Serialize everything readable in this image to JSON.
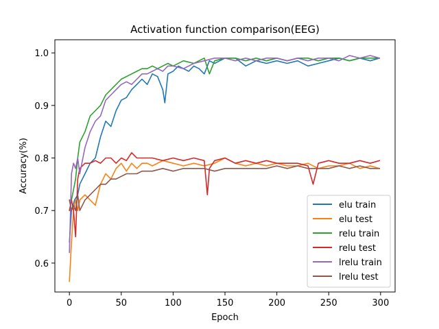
{
  "chart_data": {
    "type": "line",
    "title": "Activation function comparison(EEG)",
    "xlabel": "Epoch",
    "ylabel": "Accuracy(%)",
    "xlim": [
      -14,
      314
    ],
    "ylim": [
      0.545,
      1.025
    ],
    "xticks": [
      0,
      50,
      100,
      150,
      200,
      250,
      300
    ],
    "yticks": [
      0.6,
      0.7,
      0.8,
      0.9,
      1.0
    ],
    "ytick_labels": [
      "0.6",
      "0.7",
      "0.8",
      "0.9",
      "1.0"
    ],
    "grid": false,
    "legend_position": "lower-right",
    "series": [
      {
        "name": "elu train",
        "color": "#1f77b4",
        "x": [
          0,
          2,
          5,
          8,
          10,
          15,
          20,
          25,
          30,
          35,
          40,
          45,
          50,
          55,
          60,
          65,
          70,
          75,
          80,
          85,
          90,
          92,
          95,
          100,
          105,
          110,
          115,
          120,
          125,
          130,
          135,
          140,
          145,
          150,
          160,
          170,
          180,
          190,
          200,
          210,
          220,
          230,
          240,
          250,
          260,
          270,
          280,
          290,
          299
        ],
        "y": [
          0.64,
          0.7,
          0.72,
          0.73,
          0.75,
          0.77,
          0.79,
          0.8,
          0.84,
          0.87,
          0.86,
          0.89,
          0.91,
          0.915,
          0.93,
          0.94,
          0.95,
          0.94,
          0.96,
          0.955,
          0.93,
          0.905,
          0.96,
          0.965,
          0.975,
          0.97,
          0.965,
          0.975,
          0.97,
          0.96,
          0.985,
          0.98,
          0.985,
          0.99,
          0.99,
          0.975,
          0.985,
          0.98,
          0.985,
          0.98,
          0.985,
          0.975,
          0.98,
          0.985,
          0.99,
          0.985,
          0.99,
          0.985,
          0.99
        ]
      },
      {
        "name": "elu test",
        "color": "#ff7f0e",
        "x": [
          0,
          2,
          4,
          6,
          8,
          10,
          15,
          20,
          25,
          30,
          35,
          40,
          45,
          50,
          55,
          60,
          65,
          70,
          75,
          80,
          90,
          100,
          110,
          120,
          130,
          140,
          150,
          160,
          170,
          180,
          190,
          200,
          210,
          220,
          230,
          240,
          250,
          260,
          270,
          280,
          290,
          299
        ],
        "y": [
          0.565,
          0.64,
          0.7,
          0.72,
          0.7,
          0.72,
          0.73,
          0.72,
          0.71,
          0.75,
          0.77,
          0.76,
          0.78,
          0.79,
          0.775,
          0.79,
          0.78,
          0.79,
          0.79,
          0.785,
          0.795,
          0.79,
          0.785,
          0.79,
          0.785,
          0.79,
          0.8,
          0.79,
          0.785,
          0.79,
          0.785,
          0.79,
          0.785,
          0.785,
          0.79,
          0.78,
          0.785,
          0.785,
          0.79,
          0.78,
          0.785,
          0.78
        ]
      },
      {
        "name": "relu train",
        "color": "#2ca02c",
        "x": [
          0,
          2,
          4,
          6,
          8,
          10,
          15,
          20,
          25,
          30,
          35,
          40,
          45,
          50,
          55,
          60,
          65,
          70,
          75,
          80,
          85,
          90,
          95,
          100,
          110,
          120,
          130,
          135,
          140,
          150,
          160,
          170,
          180,
          190,
          200,
          210,
          220,
          230,
          240,
          250,
          260,
          270,
          280,
          290,
          299
        ],
        "y": [
          0.72,
          0.72,
          0.74,
          0.76,
          0.8,
          0.83,
          0.85,
          0.88,
          0.89,
          0.9,
          0.92,
          0.93,
          0.94,
          0.95,
          0.955,
          0.96,
          0.965,
          0.97,
          0.97,
          0.975,
          0.97,
          0.975,
          0.98,
          0.975,
          0.985,
          0.98,
          0.99,
          0.96,
          0.985,
          0.99,
          0.99,
          0.985,
          0.99,
          0.985,
          0.99,
          0.985,
          0.99,
          0.99,
          0.985,
          0.99,
          0.99,
          0.985,
          0.99,
          0.99,
          0.99
        ]
      },
      {
        "name": "relu test",
        "color": "#d62728",
        "x": [
          0,
          2,
          4,
          6,
          8,
          10,
          15,
          20,
          25,
          30,
          35,
          40,
          45,
          50,
          55,
          60,
          65,
          70,
          80,
          90,
          100,
          110,
          120,
          130,
          133,
          135,
          140,
          150,
          160,
          170,
          180,
          190,
          200,
          210,
          220,
          230,
          235,
          240,
          250,
          260,
          270,
          280,
          290,
          299
        ],
        "y": [
          0.7,
          0.72,
          0.7,
          0.65,
          0.76,
          0.78,
          0.79,
          0.79,
          0.795,
          0.79,
          0.8,
          0.8,
          0.79,
          0.8,
          0.795,
          0.81,
          0.8,
          0.8,
          0.8,
          0.795,
          0.8,
          0.795,
          0.8,
          0.795,
          0.73,
          0.78,
          0.795,
          0.8,
          0.79,
          0.795,
          0.79,
          0.795,
          0.79,
          0.79,
          0.79,
          0.785,
          0.75,
          0.79,
          0.795,
          0.79,
          0.79,
          0.795,
          0.79,
          0.795
        ]
      },
      {
        "name": "lrelu train",
        "color": "#9467bd",
        "x": [
          0,
          2,
          4,
          6,
          8,
          10,
          15,
          20,
          25,
          30,
          35,
          40,
          45,
          50,
          55,
          60,
          65,
          70,
          75,
          80,
          85,
          90,
          95,
          100,
          110,
          120,
          130,
          140,
          150,
          160,
          170,
          180,
          190,
          200,
          210,
          220,
          230,
          240,
          250,
          260,
          270,
          280,
          290,
          299
        ],
        "y": [
          0.62,
          0.77,
          0.79,
          0.78,
          0.8,
          0.77,
          0.82,
          0.85,
          0.87,
          0.88,
          0.91,
          0.92,
          0.93,
          0.94,
          0.945,
          0.94,
          0.95,
          0.96,
          0.96,
          0.965,
          0.97,
          0.965,
          0.975,
          0.975,
          0.97,
          0.98,
          0.985,
          0.99,
          0.99,
          0.985,
          0.99,
          0.985,
          0.99,
          0.99,
          0.985,
          0.99,
          0.985,
          0.99,
          0.99,
          0.985,
          0.995,
          0.99,
          0.995,
          0.99
        ]
      },
      {
        "name": "lrelu test",
        "color": "#8c564b",
        "x": [
          0,
          2,
          4,
          6,
          8,
          10,
          15,
          20,
          25,
          30,
          35,
          40,
          45,
          50,
          55,
          60,
          65,
          70,
          80,
          90,
          100,
          110,
          120,
          130,
          140,
          150,
          160,
          170,
          180,
          190,
          200,
          210,
          220,
          230,
          240,
          250,
          260,
          270,
          280,
          290,
          299
        ],
        "y": [
          0.72,
          0.7,
          0.71,
          0.7,
          0.73,
          0.7,
          0.72,
          0.73,
          0.74,
          0.75,
          0.75,
          0.76,
          0.76,
          0.765,
          0.77,
          0.77,
          0.77,
          0.775,
          0.775,
          0.78,
          0.775,
          0.78,
          0.78,
          0.78,
          0.775,
          0.78,
          0.78,
          0.78,
          0.78,
          0.78,
          0.785,
          0.78,
          0.785,
          0.78,
          0.78,
          0.78,
          0.785,
          0.78,
          0.785,
          0.78,
          0.78
        ]
      }
    ]
  }
}
